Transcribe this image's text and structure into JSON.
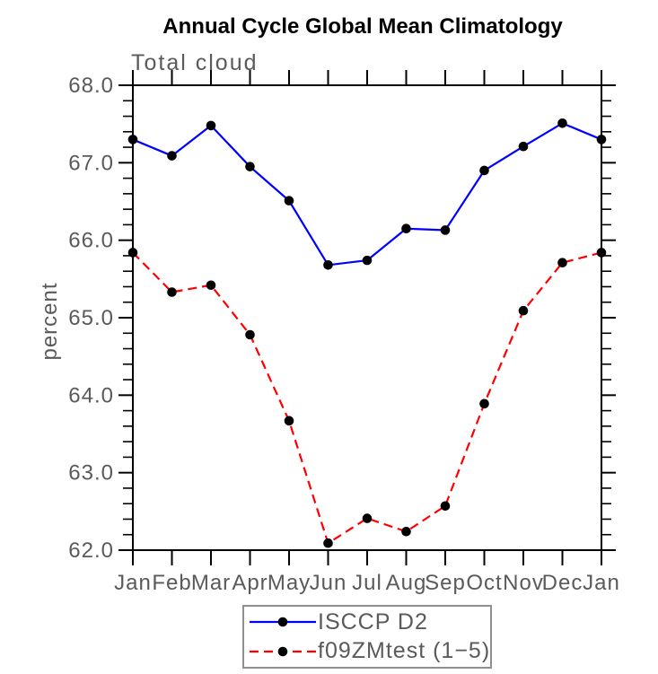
{
  "chart_data": {
    "type": "line",
    "title": "Annual Cycle Global Mean Climatology",
    "subtitle": "Total cloud",
    "xlabel": "",
    "ylabel": "percent",
    "x_categories": [
      "Jan",
      "Feb",
      "Mar",
      "Apr",
      "May",
      "Jun",
      "Jul",
      "Aug",
      "Sep",
      "Oct",
      "Nov",
      "Dec",
      "Jan"
    ],
    "ylim": [
      62.0,
      68.0
    ],
    "y_major_tick_interval": 1.0,
    "y_minor_tick_interval": 0.2,
    "y_tick_labels": [
      "68.0",
      "67.0",
      "66.0",
      "65.0",
      "64.0",
      "63.0",
      "62.0"
    ],
    "grid": false,
    "legend_position": "bottom-center",
    "series": [
      {
        "name": "ISCCP D2",
        "color": "#0000ff",
        "line_style": "solid",
        "marker": "filled-circle",
        "marker_color": "#000000",
        "values": [
          67.3,
          67.09,
          67.48,
          66.95,
          66.51,
          65.68,
          65.74,
          66.15,
          66.13,
          66.9,
          67.21,
          67.51,
          67.3
        ]
      },
      {
        "name": "f09ZMtest (1−5)",
        "color": "#ff0000",
        "line_style": "dashed",
        "marker": "filled-circle",
        "marker_color": "#000000",
        "values": [
          65.84,
          65.33,
          65.42,
          64.78,
          63.67,
          62.09,
          62.41,
          62.24,
          62.57,
          63.89,
          65.09,
          65.71,
          65.84
        ]
      }
    ]
  },
  "colors": {
    "axis": "#000000",
    "text_gray": "#5a5a5a",
    "legend_border": "#8f8f8f"
  }
}
